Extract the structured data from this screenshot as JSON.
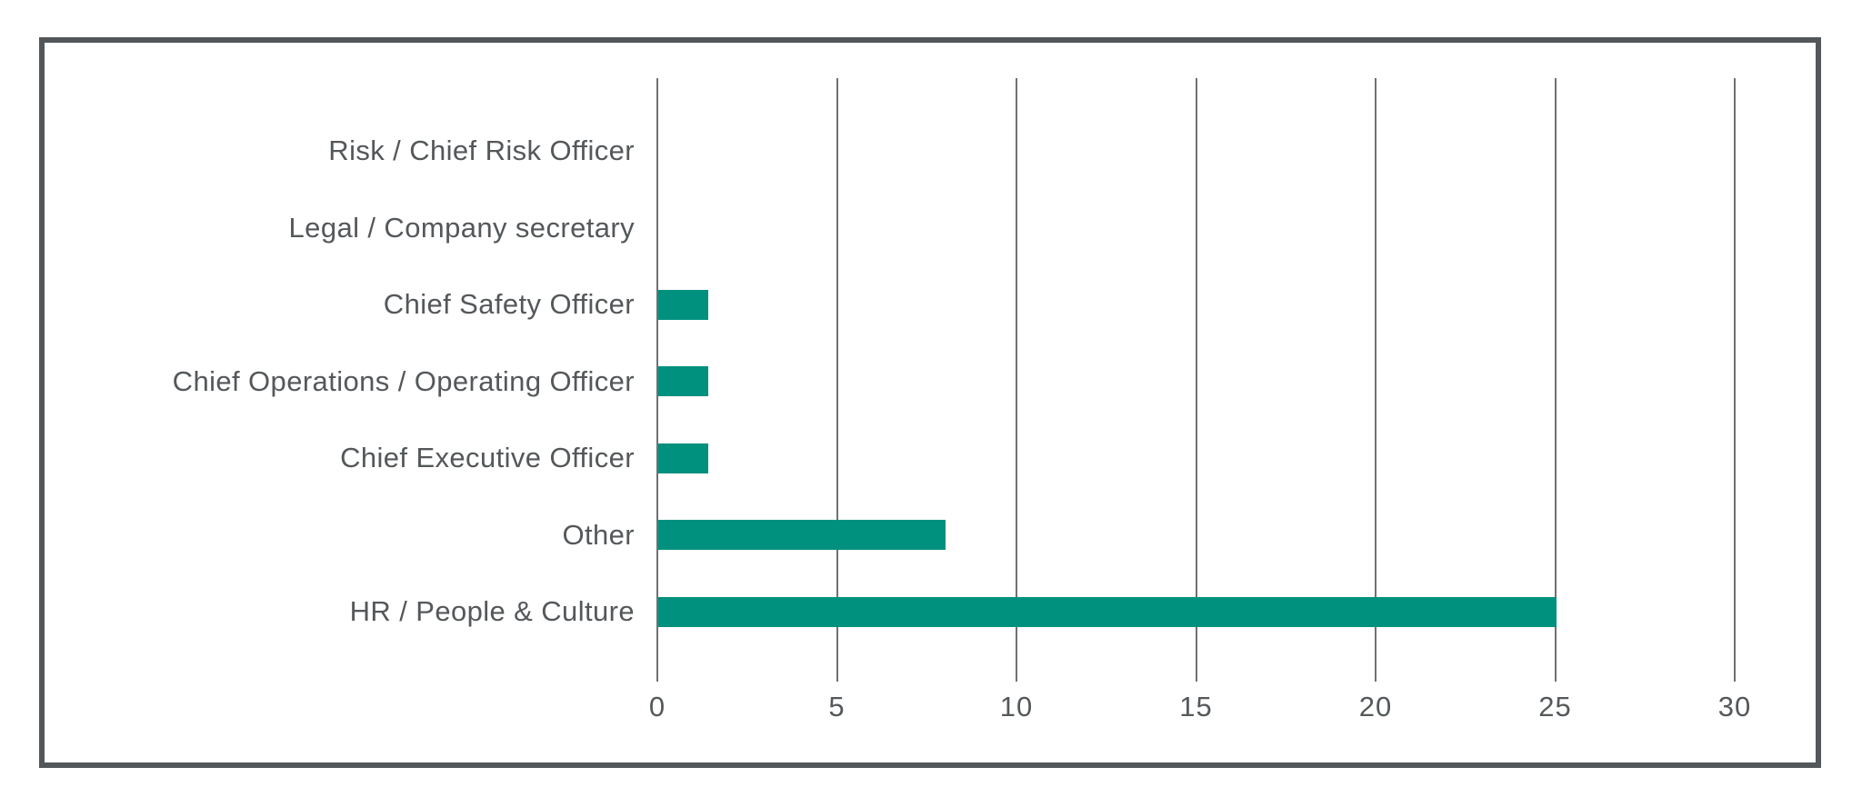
{
  "chart_data": {
    "type": "bar",
    "orientation": "horizontal",
    "title": "",
    "xlabel": "",
    "ylabel": "",
    "categories": [
      "Risk / Chief Risk Officer",
      "Legal / Company secretary",
      "Chief Safety Officer",
      "Chief Operations / Operating Officer",
      "Chief Executive Officer",
      "Other",
      "HR / People & Culture"
    ],
    "values": [
      0,
      0,
      1.4,
      1.4,
      1.4,
      8,
      25
    ],
    "xticks": [
      "0",
      "5",
      "10",
      "15",
      "20",
      "25",
      "30"
    ],
    "xtick_values": [
      0,
      5,
      10,
      15,
      20,
      25,
      30
    ],
    "xlim": [
      0,
      32.3
    ],
    "gridlines": "vertical",
    "legend_position": "none",
    "colors": {
      "bar": "#00917E",
      "text": "#54585A",
      "gridline": "#6E7174",
      "frame_border": "#53575A",
      "background": "#FFFFFF"
    }
  }
}
